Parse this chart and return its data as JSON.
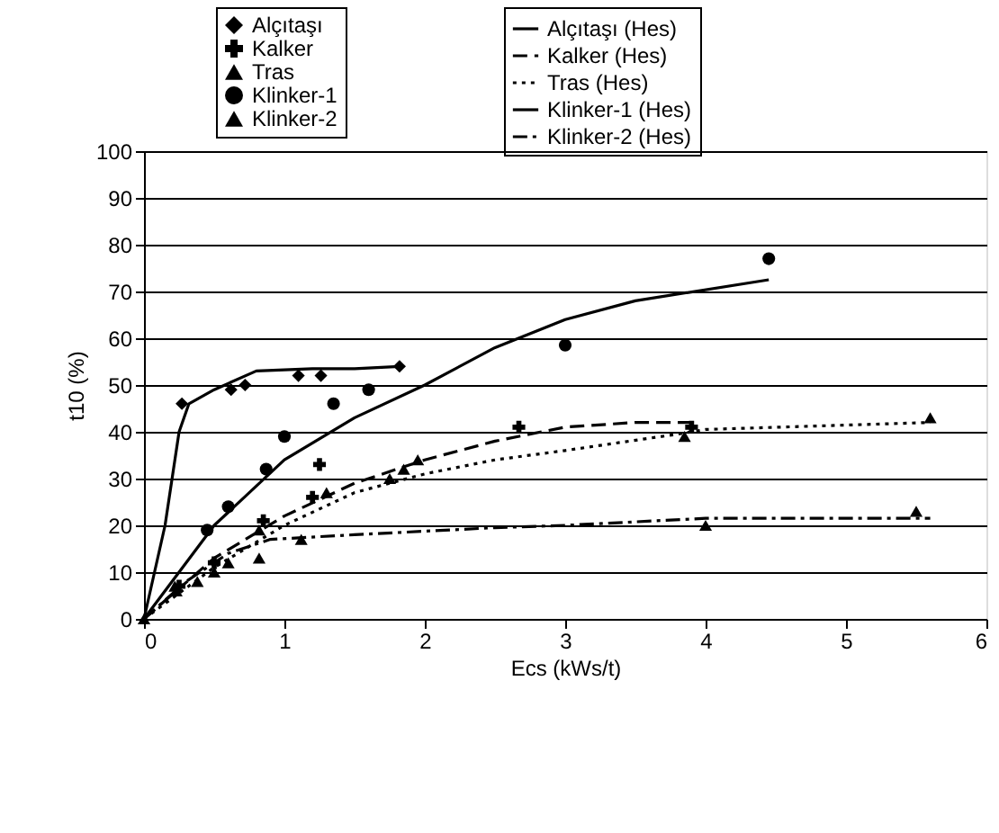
{
  "chart_data": {
    "type": "scatter",
    "xlabel": "Ecs (kWs/t)",
    "ylabel": "t10 (%)",
    "xlim": [
      0,
      6
    ],
    "xticks": [
      0,
      1,
      2,
      3,
      4,
      5,
      6
    ],
    "ylim": [
      0,
      100
    ],
    "yticks": [
      0,
      10,
      20,
      30,
      40,
      50,
      60,
      70,
      80,
      90,
      100
    ],
    "grid": "y",
    "legend": "top",
    "series": [
      {
        "name": "Alçıtaşı",
        "marker": "diamond",
        "color": "#000000",
        "x": [
          0.27,
          0.62,
          0.72,
          1.1,
          1.26,
          1.82
        ],
        "values": [
          46,
          49,
          50,
          52,
          52,
          54
        ]
      },
      {
        "name": "Kalker",
        "marker": "cross",
        "color": "#000000",
        "x": [
          0.25,
          0.5,
          0.85,
          1.2,
          1.25,
          2.67,
          3.9
        ],
        "values": [
          7,
          12,
          21,
          26,
          33,
          41,
          41
        ]
      },
      {
        "name": "Tras",
        "marker": "triangle",
        "color": "#000000",
        "x": [
          0.22,
          0.38,
          0.6,
          0.82,
          1.3,
          1.75,
          1.85,
          1.95,
          3.85,
          5.6
        ],
        "values": [
          7,
          8,
          12,
          19,
          27,
          30,
          32,
          34,
          39,
          43
        ]
      },
      {
        "name": "Klinker-1",
        "marker": "circle",
        "color": "#000000",
        "x": [
          0.45,
          0.6,
          0.87,
          1.0,
          1.35,
          1.6,
          3.0,
          4.45
        ],
        "values": [
          19,
          24,
          32,
          39,
          46,
          49,
          58.5,
          77
        ]
      },
      {
        "name": "Alçıtaşı (Hes)",
        "type": "line",
        "line_style": "solid",
        "color": "#000000",
        "x": [
          0,
          0.15,
          0.25,
          0.32,
          0.5,
          0.8,
          1.2,
          1.5,
          1.85
        ],
        "values": [
          0,
          20,
          40,
          46,
          49,
          53,
          53.5,
          53.5,
          54
        ]
      },
      {
        "name": "Kalker (Hes)",
        "type": "line",
        "line_style": "dashed",
        "color": "#000000",
        "x": [
          0,
          0.5,
          1,
          1.5,
          2,
          2.5,
          3,
          3.5,
          3.9
        ],
        "values": [
          0,
          13,
          22,
          29,
          34,
          38,
          41,
          42,
          42
        ]
      },
      {
        "name": "Tras (Hes)",
        "type": "line",
        "line_style": "dotted",
        "color": "#000000",
        "x": [
          0,
          0.5,
          1,
          1.5,
          2,
          2.5,
          3,
          3.8,
          4,
          5.6
        ],
        "values": [
          0,
          11,
          20,
          27,
          31,
          34,
          36,
          39.5,
          40.5,
          42
        ]
      },
      {
        "name": "Klinker-1 (Hes)",
        "type": "line",
        "line_style": "solid",
        "color": "#000000",
        "x": [
          0,
          0.5,
          1,
          1.5,
          2,
          2.5,
          3,
          3.5,
          4.45
        ],
        "values": [
          0,
          20,
          34,
          43,
          50,
          58,
          64,
          68,
          72.5
        ]
      },
      {
        "name": "Klinker-2",
        "marker": "triangle",
        "color": "#000000",
        "x": [
          0,
          0.23,
          0.5,
          0.82,
          1.12,
          4.0,
          5.5
        ],
        "values": [
          0,
          6,
          10,
          13,
          17,
          20,
          23
        ]
      },
      {
        "name": "Klinker-2 (Hes)",
        "type": "line",
        "line_style": "dashdot",
        "color": "#000000",
        "x": [
          0,
          0.3,
          0.6,
          0.9,
          1.5,
          2.5,
          3,
          4,
          5.6
        ],
        "values": [
          0,
          8,
          14,
          17,
          18,
          19.5,
          20,
          21.5,
          21.5
        ]
      }
    ]
  }
}
